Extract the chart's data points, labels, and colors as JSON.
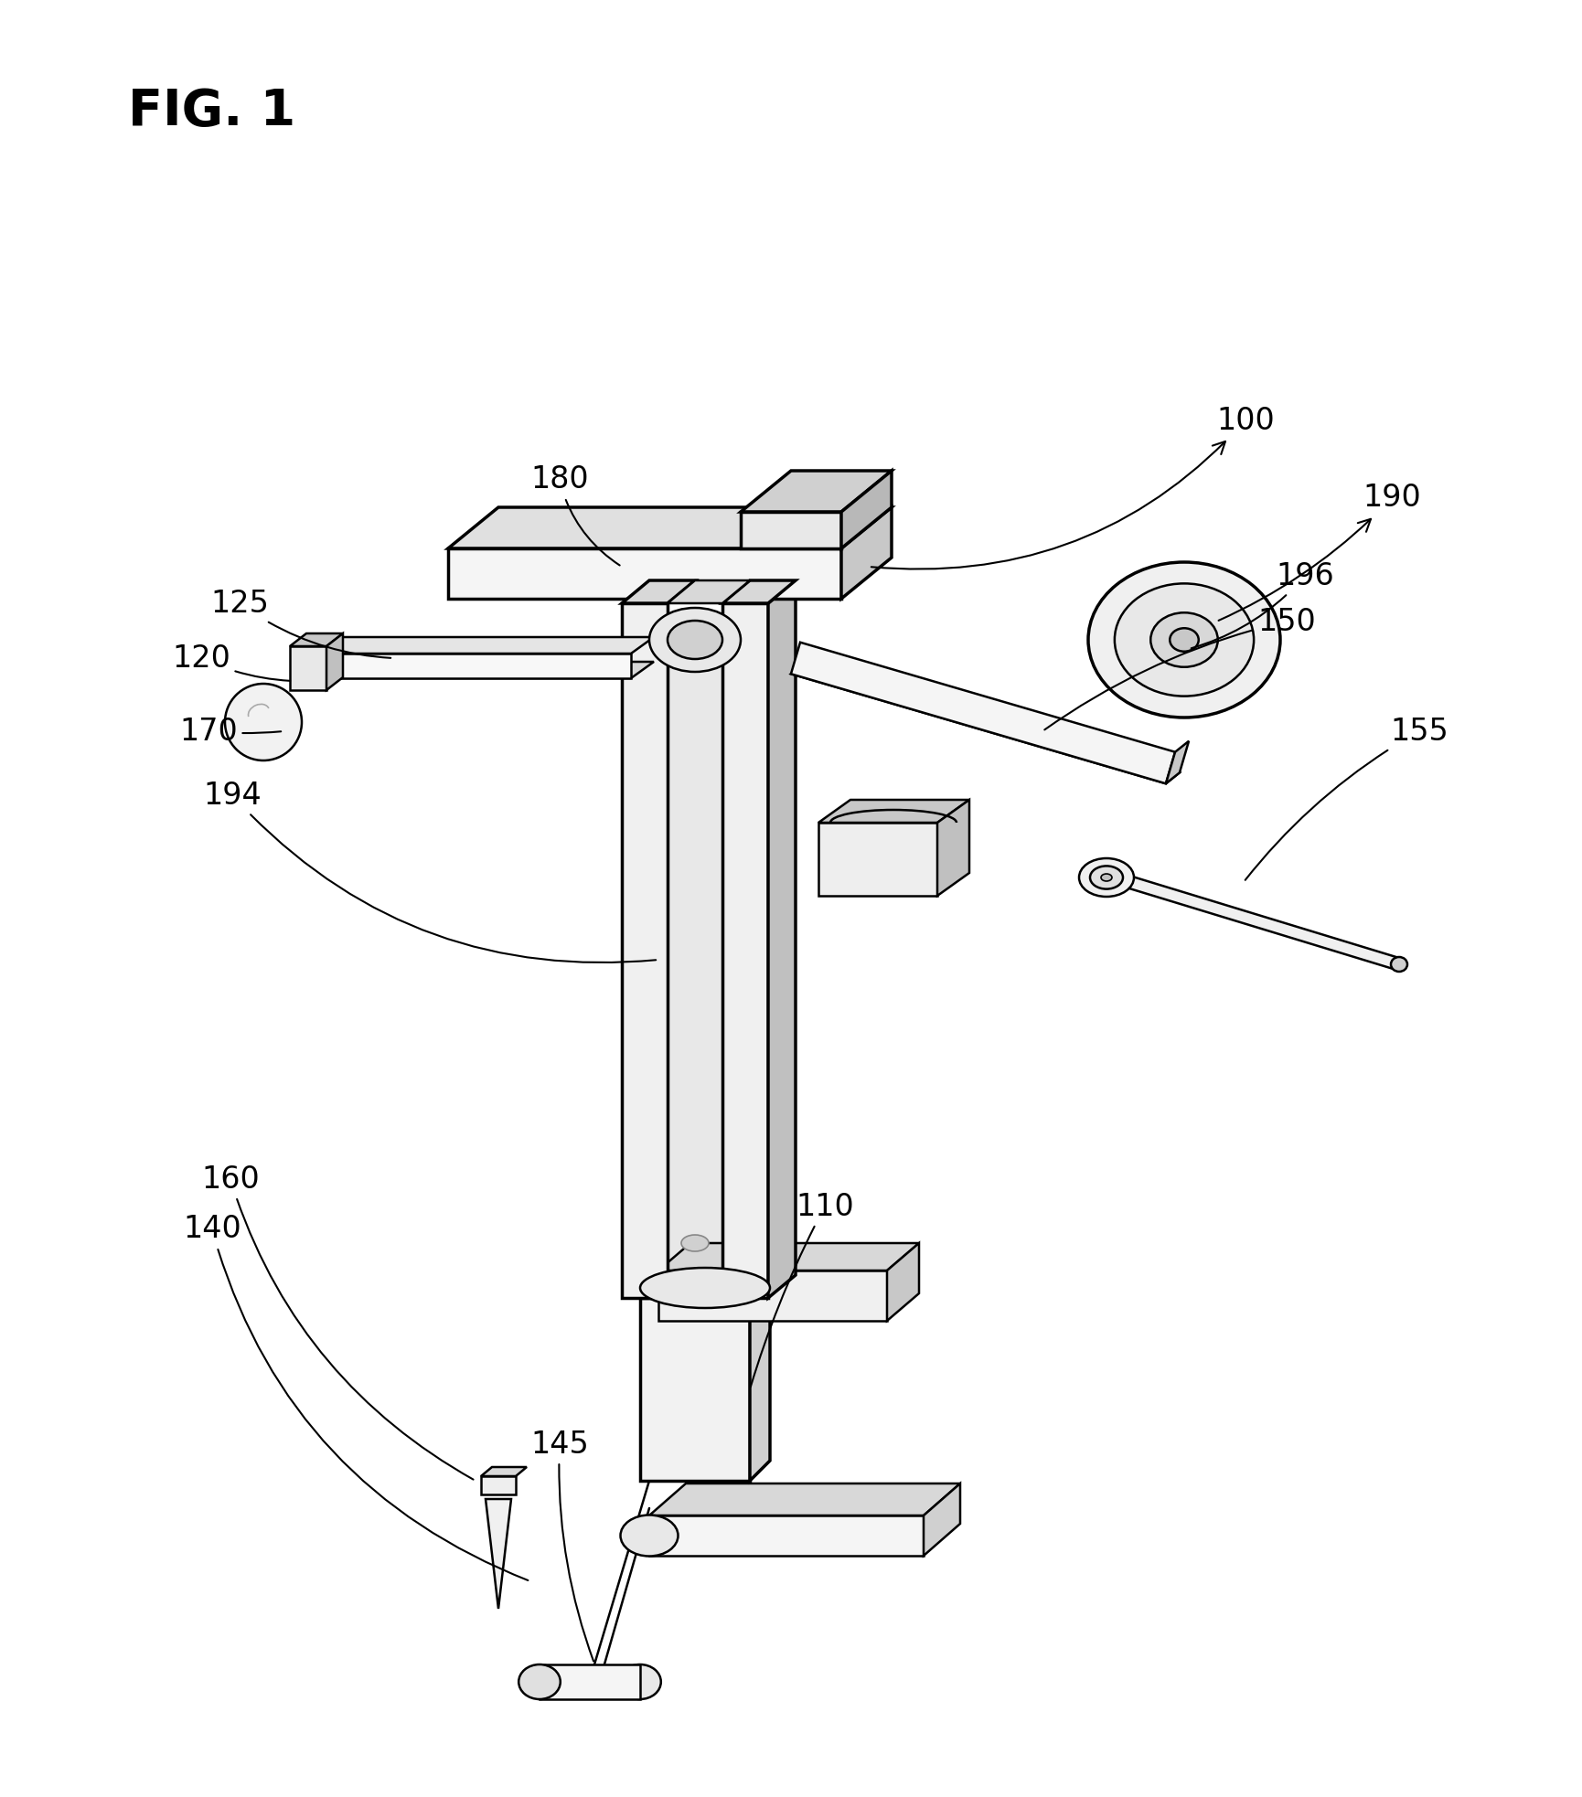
{
  "title": "FIG. 1",
  "background_color": "#ffffff",
  "line_color": "#000000",
  "fig_width": 17.3,
  "fig_height": 19.66,
  "dpi": 100
}
